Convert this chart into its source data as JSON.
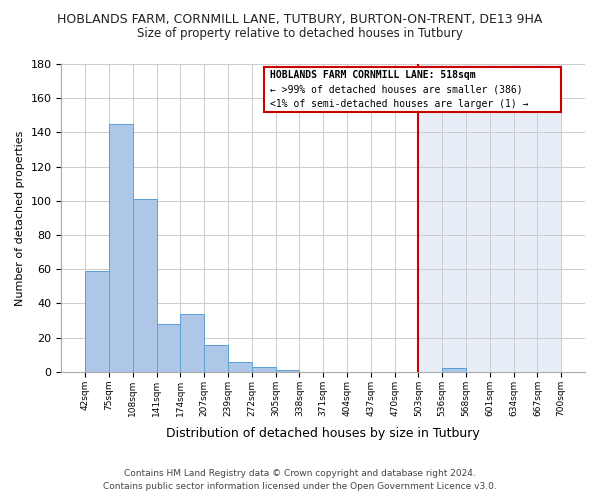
{
  "title": "HOBLANDS FARM, CORNMILL LANE, TUTBURY, BURTON-ON-TRENT, DE13 9HA",
  "subtitle": "Size of property relative to detached houses in Tutbury",
  "xlabel": "Distribution of detached houses by size in Tutbury",
  "ylabel": "Number of detached properties",
  "bin_labels": [
    "42sqm",
    "75sqm",
    "108sqm",
    "141sqm",
    "174sqm",
    "207sqm",
    "239sqm",
    "272sqm",
    "305sqm",
    "338sqm",
    "371sqm",
    "404sqm",
    "437sqm",
    "470sqm",
    "503sqm",
    "536sqm",
    "568sqm",
    "601sqm",
    "634sqm",
    "667sqm",
    "700sqm"
  ],
  "bar_values": [
    59,
    145,
    101,
    28,
    34,
    16,
    6,
    3,
    1,
    0,
    0,
    0,
    0,
    0,
    0,
    2,
    0,
    0,
    0,
    0
  ],
  "bar_color": "#aec6e8",
  "bar_edge_color": "#5a9fd4",
  "ylim": [
    0,
    180
  ],
  "yticks": [
    0,
    20,
    40,
    60,
    80,
    100,
    120,
    140,
    160,
    180
  ],
  "red_line_x": 14,
  "red_line_color": "#cc0000",
  "highlight_color": "#e8eef8",
  "annotation_title": "HOBLANDS FARM CORNMILL LANE: 518sqm",
  "annotation_line1": "← >99% of detached houses are smaller (386)",
  "annotation_line2": "<1% of semi-detached houses are larger (1) →",
  "footer_line1": "Contains HM Land Registry data © Crown copyright and database right 2024.",
  "footer_line2": "Contains public sector information licensed under the Open Government Licence v3.0.",
  "background_color": "#ffffff",
  "grid_color": "#cccccc"
}
